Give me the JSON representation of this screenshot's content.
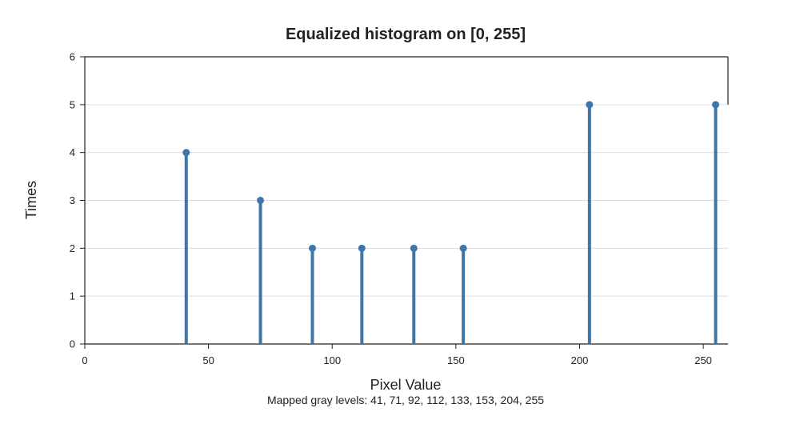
{
  "chart_data": {
    "type": "stem",
    "title": "Equalized histogram on [0, 255]",
    "xlabel": "Pixel Value",
    "ylabel": "Times",
    "caption": "Mapped gray levels: 41, 71, 92, 112, 133, 153, 204, 255",
    "xlim": [
      0,
      260
    ],
    "ylim": [
      0,
      6
    ],
    "xticks": [
      0,
      50,
      100,
      150,
      200,
      250
    ],
    "yticks": [
      0,
      1,
      2,
      3,
      4,
      5,
      6
    ],
    "grid": true,
    "series": [
      {
        "x": [
          41,
          71,
          92,
          112,
          133,
          153,
          204,
          255
        ],
        "y": [
          4,
          3,
          2,
          2,
          2,
          2,
          5,
          5
        ]
      }
    ],
    "colors": {
      "stem": "#3d76a9",
      "axis": "#222222",
      "grid": "#dddddd",
      "text": "#222222"
    }
  }
}
